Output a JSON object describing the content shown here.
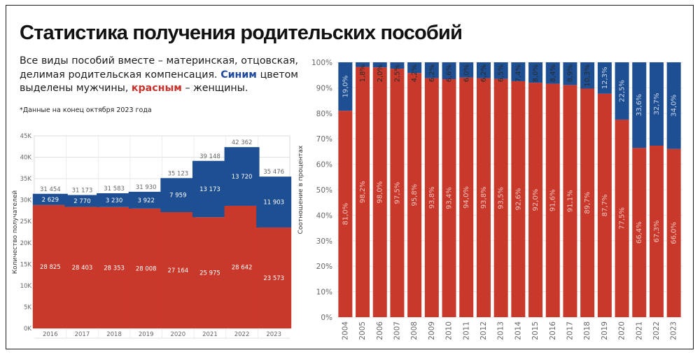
{
  "title": "Статистика получения родительских пособий",
  "description": {
    "part1": "Все виды пособий вместе – материнская, отцовская, делимая родительская компенсация. ",
    "blue_word": "Синим",
    "part2": " цветом выделены мужчины, ",
    "red_word": "красным",
    "part3": " – женщины."
  },
  "footnote": "*Данные на конец октября 2023 года",
  "colors": {
    "men": "#1e4f93",
    "women": "#c9392b",
    "border": "#1a1a1a",
    "grid": "#dddddd"
  },
  "chart_data": [
    {
      "type": "bar",
      "stacked": true,
      "ylabel": "Количество получателей",
      "ylim": [
        0,
        45000
      ],
      "y_ticks": [
        "0K",
        "5K",
        "10K",
        "15K",
        "20K",
        "25K",
        "30K",
        "35K",
        "40K",
        "45K"
      ],
      "categories": [
        "2016",
        "2017",
        "2018",
        "2019",
        "2020",
        "2021",
        "2022",
        "2023"
      ],
      "series": [
        {
          "values": [
            28825,
            28403,
            28353,
            28008,
            27164,
            25975,
            28642,
            23573
          ],
          "labels": [
            "28 825",
            "28 403",
            "28 353",
            "28 008",
            "27 164",
            "25 975",
            "28 642",
            "23 573"
          ]
        },
        {
          "values": [
            2629,
            2770,
            3230,
            3922,
            7959,
            13173,
            13720,
            11903
          ],
          "labels": [
            "2 629",
            "2 770",
            "3 230",
            "3 922",
            "7 959",
            "13 173",
            "13 720",
            "11 903"
          ]
        }
      ],
      "totals": [
        "31 454",
        "31 173",
        "31 583",
        "31 930",
        "35 123",
        "39 148",
        "42 362",
        "35 476"
      ],
      "grid": true
    },
    {
      "type": "bar",
      "stacked": true,
      "percent": true,
      "ylabel": "Соотношение в процентах",
      "ylim": [
        0,
        100
      ],
      "y_ticks": [
        "0%",
        "10%",
        "20%",
        "30%",
        "40%",
        "50%",
        "60%",
        "70%",
        "80%",
        "90%",
        "100%"
      ],
      "categories": [
        "2004",
        "2005",
        "2006",
        "2007",
        "2008",
        "2009",
        "2010",
        "2011",
        "2012",
        "2013",
        "2014",
        "2015",
        "2016",
        "2017",
        "2018",
        "2019",
        "2020",
        "2021",
        "2022",
        "2023"
      ],
      "series": [
        {
          "values": [
            81.0,
            98.2,
            98.0,
            97.5,
            95.8,
            93.8,
            93.4,
            94.0,
            93.8,
            93.5,
            92.6,
            92.0,
            91.6,
            91.1,
            89.7,
            87.7,
            77.5,
            66.4,
            67.3,
            66.0
          ],
          "labels": [
            "81,0%",
            "98,2%",
            "98,0%",
            "97,5%",
            "95,8%",
            "93,8%",
            "93,4%",
            "94,0%",
            "93,8%",
            "93,5%",
            "92,6%",
            "92,0%",
            "91,6%",
            "91,1%",
            "89,7%",
            "87,7%",
            "77,5%",
            "66,4%",
            "67,3%",
            "66,0%"
          ]
        },
        {
          "values": [
            19.0,
            1.8,
            2.0,
            2.5,
            4.2,
            6.2,
            6.6,
            6.0,
            6.2,
            6.5,
            7.4,
            8.0,
            8.4,
            8.9,
            10.3,
            12.3,
            22.5,
            33.6,
            32.7,
            34.0
          ],
          "labels": [
            "19,0%",
            "1,8%",
            "2,0%",
            "2,5%",
            "4,2%",
            "6,2%",
            "6,6%",
            "6,0%",
            "6,2%",
            "6,5%",
            "7,4%",
            "8,0%",
            "8,4%",
            "8,9%",
            "10,3%",
            "12,3%",
            "22,5%",
            "33,6%",
            "32,7%",
            "34,0%"
          ]
        }
      ],
      "grid": true
    }
  ]
}
